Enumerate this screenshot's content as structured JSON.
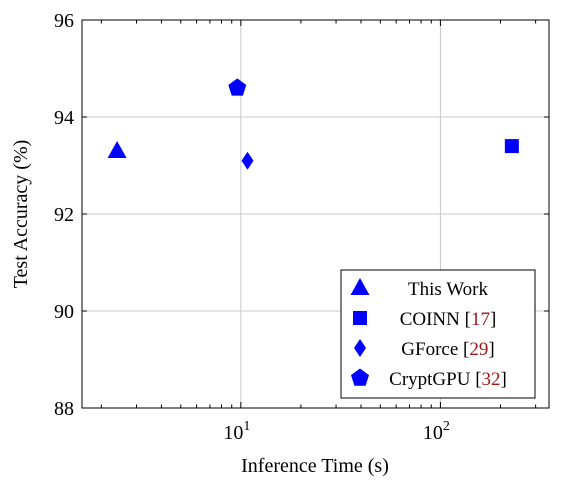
{
  "chart_data": {
    "type": "scatter",
    "title": "",
    "xlabel": "Inference Time (s)",
    "ylabel": "Test Accuracy (%)",
    "xscale": "log",
    "xlim": [
      1.6,
      350
    ],
    "ylim": [
      88,
      96
    ],
    "x_ticks": [
      {
        "value": 10,
        "base": "10",
        "exp": "1"
      },
      {
        "value": 100,
        "base": "10",
        "exp": "2"
      }
    ],
    "y_ticks": [
      88,
      90,
      92,
      94,
      96
    ],
    "grid": true,
    "legend_position": "bottom-right",
    "series": [
      {
        "name": "This Work",
        "ref": "",
        "marker": "triangle",
        "color": "#0000ff",
        "x": 2.4,
        "y": 93.3
      },
      {
        "name": "COINN",
        "ref": "17",
        "marker": "square",
        "color": "#0000ff",
        "x": 228,
        "y": 93.4
      },
      {
        "name": "GForce",
        "ref": "29",
        "marker": "diamond",
        "color": "#0000ff",
        "x": 10.8,
        "y": 93.1
      },
      {
        "name": "CryptGPU",
        "ref": "32",
        "marker": "pentagon",
        "color": "#0000ff",
        "x": 9.6,
        "y": 94.6
      }
    ]
  }
}
